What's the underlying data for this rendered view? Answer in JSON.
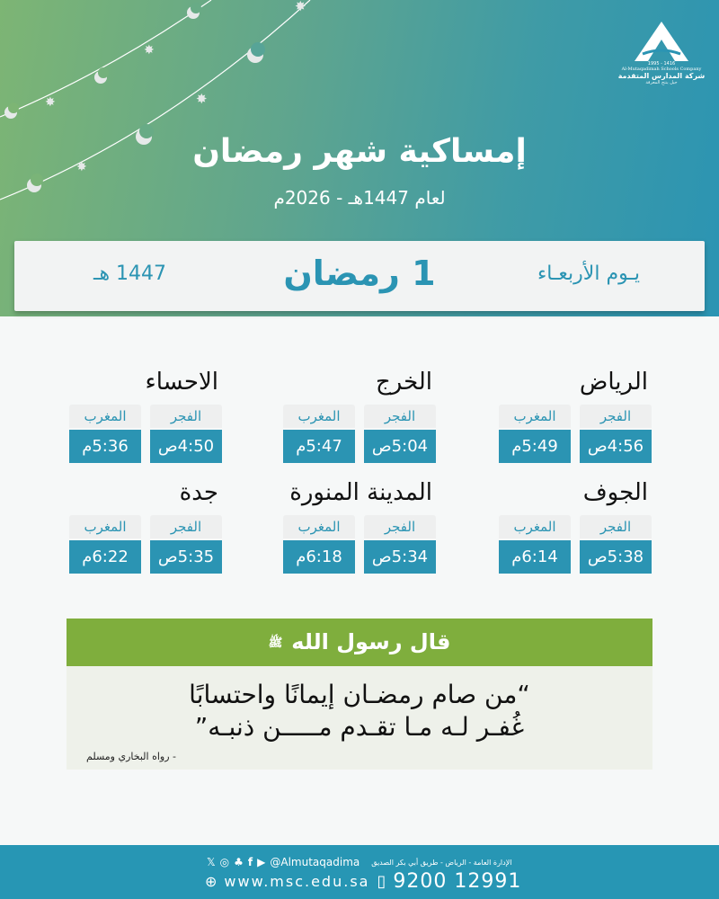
{
  "logo": {
    "years": "1995 - 1416",
    "name_en": "Al-Mutaqadimah Schools Company",
    "name_ar": "شركة المدارس المتقدمة",
    "tagline": "جيل ينتج المعرفة"
  },
  "header": {
    "title": "إمساكية شهر رمضان",
    "subtitle": "لعام 1447هـ - 2026م"
  },
  "day": {
    "weekday": "يـوم الأربعـاء",
    "date": "1 رمضان",
    "hijri_year": "1447 هـ"
  },
  "labels": {
    "fajr": "الفجر",
    "maghrib": "المغرب"
  },
  "cities": [
    {
      "name": "الرياض",
      "fajr": "4:56ص",
      "maghrib": "5:49م"
    },
    {
      "name": "الخرج",
      "fajr": "5:04ص",
      "maghrib": "5:47م"
    },
    {
      "name": "الاحساء",
      "fajr": "4:50ص",
      "maghrib": "5:36م"
    },
    {
      "name": "الجوف",
      "fajr": "5:38ص",
      "maghrib": "6:14م"
    },
    {
      "name": "المدينة المنورة",
      "fajr": "5:34ص",
      "maghrib": "6:18م"
    },
    {
      "name": "جدة",
      "fajr": "5:35ص",
      "maghrib": "6:22م"
    }
  ],
  "hadith": {
    "heading": "قال رسول الله",
    "honorific": "ﷺ",
    "line1": "“من صام رمضـان إيمانًا واحتسابًا",
    "line2": "غُفـر لـه مـا تقـدم مـــــن ذنبـه”",
    "source": "-  رواه البخاري ومسلم"
  },
  "footer": {
    "address": "الإدارة العامة - الرياض - طريق أبي بكر الصديق",
    "handle": "@Almutaqadima",
    "website": "www.msc.edu.sa",
    "phone": "9200 12991",
    "icons": [
      "x-icon",
      "instagram-icon",
      "snapchat-icon",
      "facebook-icon",
      "youtube-icon",
      "globe-icon",
      "phone-icon"
    ]
  },
  "colors": {
    "teal": "#2b94b3",
    "green": "#7fae3d",
    "footer": "#2796b4"
  }
}
